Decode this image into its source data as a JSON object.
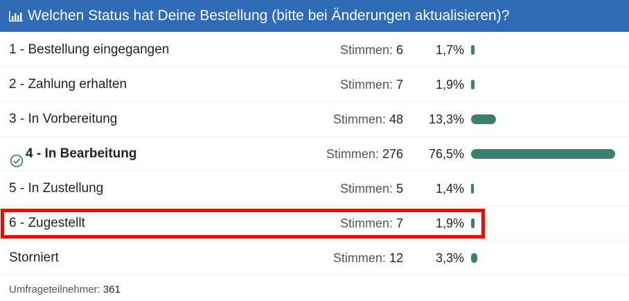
{
  "header": {
    "title": "Welchen Status hat Deine Bestellung (bitte bei Änderungen aktualisieren)?",
    "icon": "bar-chart-icon",
    "background": "#2f6bb7"
  },
  "colors": {
    "bar": "#3a7f6f",
    "highlight": "#ff0000"
  },
  "options": [
    {
      "label": "1 - Bestellung eingegangen",
      "votes_label": "Stimmen:",
      "votes": "6",
      "percent_text": "1,7%",
      "percent": 1.7,
      "selected": false
    },
    {
      "label": "2 - Zahlung erhalten",
      "votes_label": "Stimmen:",
      "votes": "7",
      "percent_text": "1,9%",
      "percent": 1.9,
      "selected": false
    },
    {
      "label": "3 - In Vorbereitung",
      "votes_label": "Stimmen:",
      "votes": "48",
      "percent_text": "13,3%",
      "percent": 13.3,
      "selected": false
    },
    {
      "label": "4 - In Bearbeitung",
      "votes_label": "Stimmen:",
      "votes": "276",
      "percent_text": "76,5%",
      "percent": 76.5,
      "selected": true
    },
    {
      "label": "5 - In Zustellung",
      "votes_label": "Stimmen:",
      "votes": "5",
      "percent_text": "1,4%",
      "percent": 1.4,
      "selected": false
    },
    {
      "label": "6 - Zugestellt",
      "votes_label": "Stimmen:",
      "votes": "7",
      "percent_text": "1,9%",
      "percent": 1.9,
      "selected": false,
      "highlighted": true
    },
    {
      "label": "Storniert",
      "votes_label": "Stimmen:",
      "votes": "12",
      "percent_text": "3,3%",
      "percent": 3.3,
      "selected": false
    }
  ],
  "footer": {
    "label": "Umfrageteilnehmer:",
    "count": "361"
  }
}
